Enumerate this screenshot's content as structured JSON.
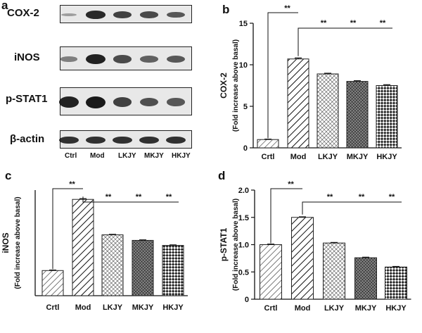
{
  "panels": {
    "a": "a",
    "b": "b",
    "c": "c",
    "d": "d"
  },
  "blot": {
    "rows": [
      {
        "label": "COX-2",
        "intensities": [
          0.15,
          0.9,
          0.75,
          0.7,
          0.6
        ]
      },
      {
        "label": "iNOS",
        "intensities": [
          0.35,
          0.95,
          0.7,
          0.55,
          0.6
        ]
      },
      {
        "label": "p-STAT1",
        "intensities": [
          0.95,
          1.0,
          0.75,
          0.65,
          0.6
        ]
      },
      {
        "label": "β-actin",
        "intensities": [
          0.85,
          0.85,
          0.85,
          0.85,
          0.85
        ]
      }
    ],
    "lanes": [
      "Ctrl",
      "Mod",
      "LKJY",
      "MKJY",
      "HKJY"
    ]
  },
  "chart_data": [
    {
      "id": "b",
      "type": "bar",
      "categories": [
        "Crtl",
        "Mod",
        "LKJY",
        "MKJY",
        "HKJY"
      ],
      "values": [
        1.0,
        10.7,
        8.9,
        8.0,
        7.5
      ],
      "errors": [
        0.05,
        0.12,
        0.08,
        0.08,
        0.1
      ],
      "ylabel": "COX-2",
      "ylabel2": "(Fold increase above basal)",
      "ylim": [
        0,
        15
      ],
      "yticks": [
        "0",
        "5",
        "10",
        "15"
      ],
      "tick_values": [
        0,
        5,
        10,
        15
      ],
      "significance": [
        "**",
        "**",
        "**",
        "**"
      ],
      "patterns": [
        "diag-thin",
        "diag-wide",
        "grid",
        "grid-dense",
        "checker"
      ]
    },
    {
      "id": "c",
      "type": "bar",
      "categories": [
        "Crtl",
        "Mod",
        "LKJY",
        "MKJY",
        "HKJY"
      ],
      "values": [
        1.0,
        3.83,
        2.42,
        2.2,
        2.0
      ],
      "errors": [
        0.02,
        0.03,
        0.02,
        0.02,
        0.02
      ],
      "ylabel": "iNOS",
      "ylabel2": "(Fold increase above basal)",
      "ylim": [
        0,
        4.2
      ],
      "yticks": [],
      "tick_values": [],
      "significance": [
        "**",
        "**",
        "**",
        "**"
      ],
      "patterns": [
        "diag-thin",
        "diag-wide",
        "grid",
        "grid-dense",
        "checker"
      ]
    },
    {
      "id": "d",
      "type": "bar",
      "categories": [
        "Crtl",
        "Mod",
        "LKJY",
        "MKJY",
        "HKJY"
      ],
      "values": [
        1.0,
        1.5,
        1.03,
        0.76,
        0.59
      ],
      "errors": [
        0.01,
        0.01,
        0.01,
        0.01,
        0.01
      ],
      "ylabel": "p-STAT1",
      "ylabel2": "(Fold increase above basal)",
      "ylim": [
        0,
        2.0
      ],
      "yticks": [
        "0",
        "0.5",
        "1.0",
        "1.5",
        "2.0"
      ],
      "tick_values": [
        0,
        0.5,
        1.0,
        1.5,
        2.0
      ],
      "significance": [
        "**",
        "**",
        "**",
        "**"
      ],
      "patterns": [
        "diag-thin",
        "diag-wide",
        "grid",
        "grid-dense",
        "checker"
      ]
    }
  ]
}
